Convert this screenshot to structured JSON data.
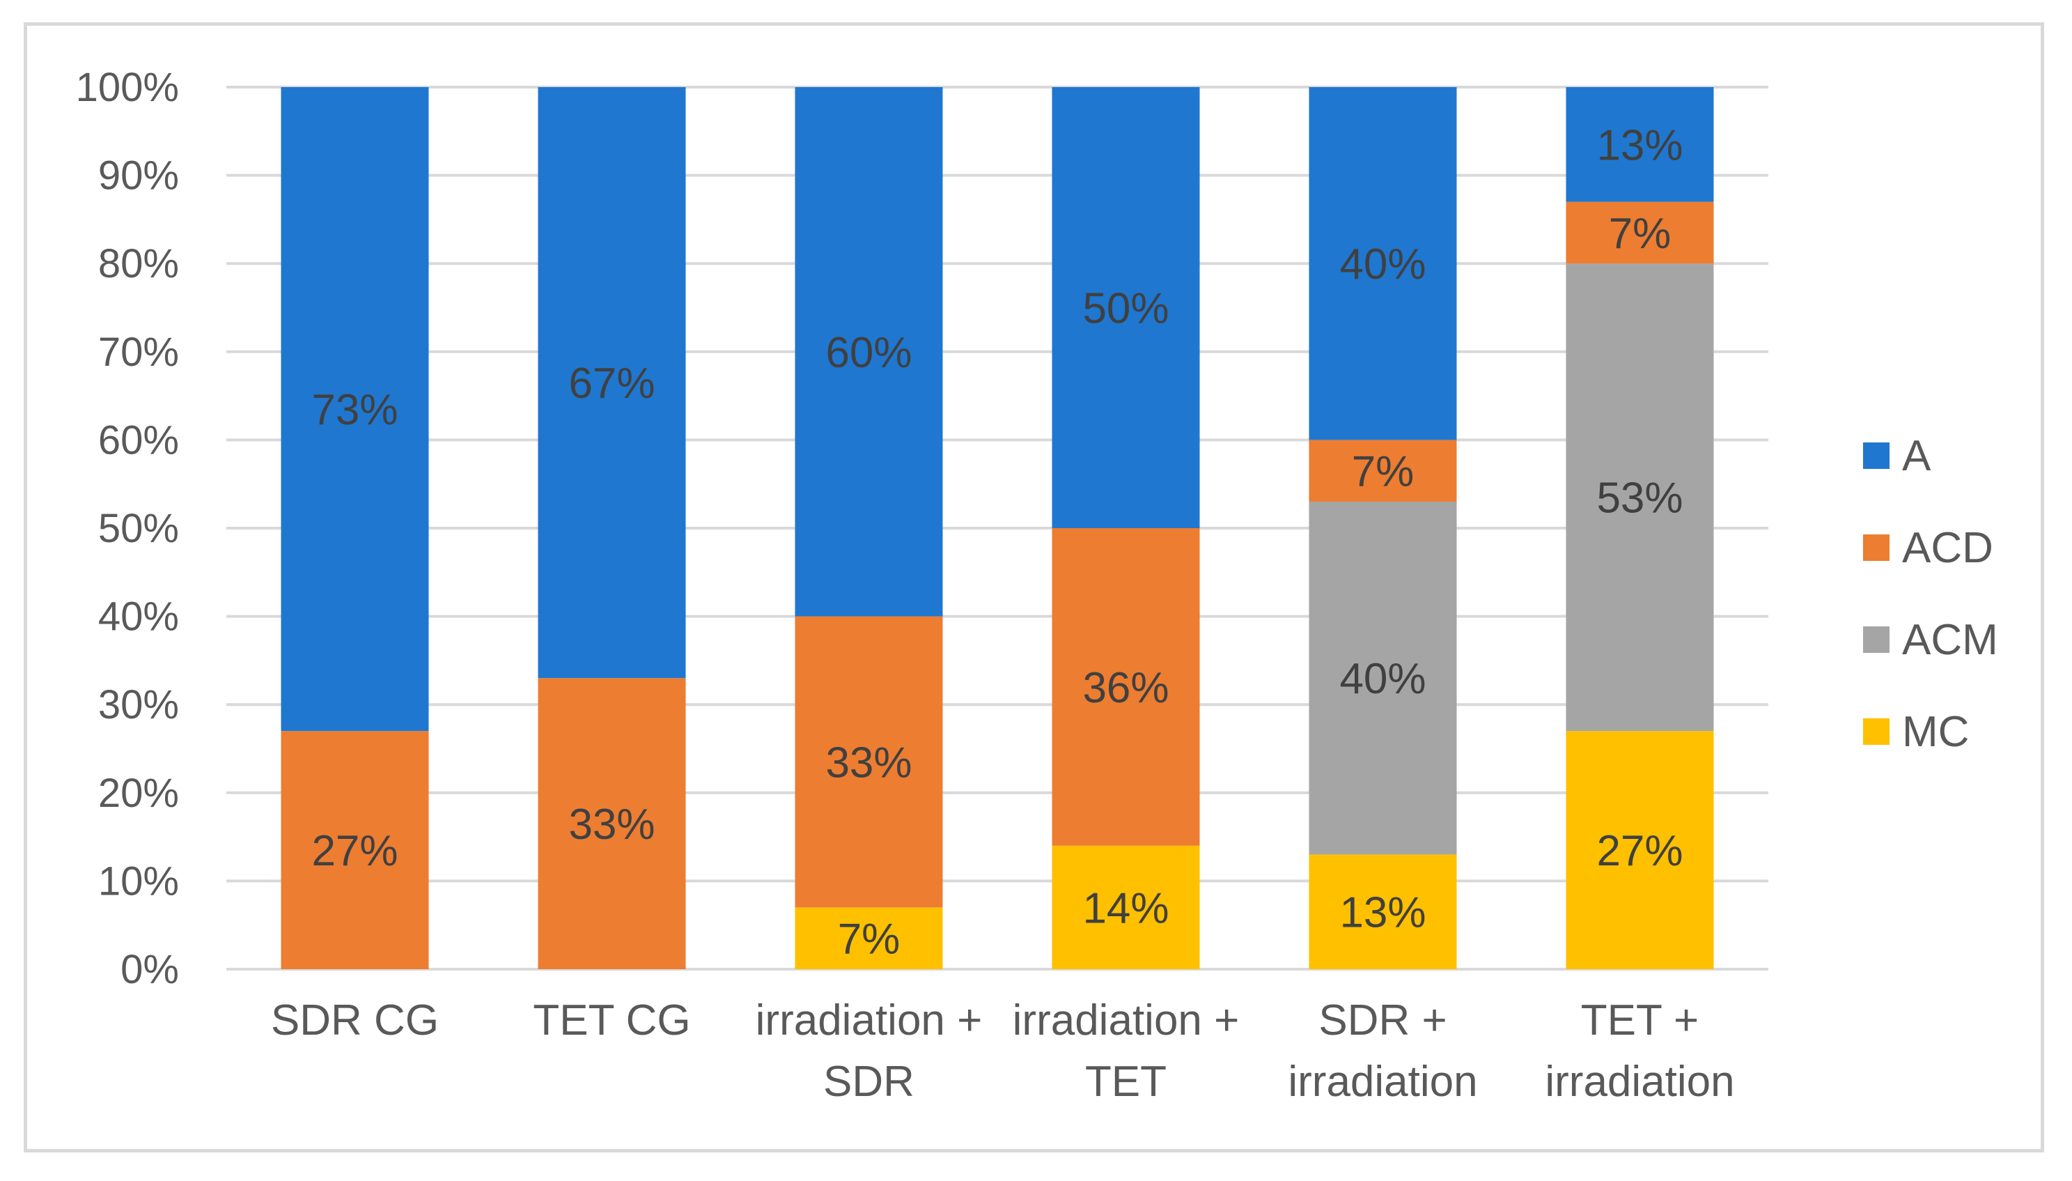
{
  "chart_data": {
    "type": "bar",
    "stacked": true,
    "categories": [
      [
        "SDR CG"
      ],
      [
        "TET CG"
      ],
      [
        "irradiation +",
        "SDR"
      ],
      [
        "irradiation +",
        "TET"
      ],
      [
        "SDR +",
        "irradiation"
      ],
      [
        "TET +",
        "irradiation"
      ]
    ],
    "series": [
      {
        "name": "MC",
        "color": "#ffc000",
        "values": [
          0,
          0,
          7,
          14,
          13,
          27
        ],
        "labels": [
          "",
          "",
          "7%",
          "14%",
          "13%",
          "27%"
        ]
      },
      {
        "name": "ACM",
        "color": "#a5a5a5",
        "values": [
          0,
          0,
          0,
          0,
          40,
          53
        ],
        "labels": [
          "",
          "",
          "",
          "",
          "40%",
          "53%"
        ]
      },
      {
        "name": "ACD",
        "color": "#ed7d31",
        "values": [
          27,
          33,
          33,
          36,
          7,
          7
        ],
        "labels": [
          "27%",
          "33%",
          "33%",
          "36%",
          "7%",
          "7%"
        ]
      },
      {
        "name": "A",
        "color": "#1f77d0",
        "values": [
          73,
          67,
          60,
          50,
          40,
          13
        ],
        "labels": [
          "73%",
          "67%",
          "60%",
          "50%",
          "40%",
          "13%"
        ]
      }
    ],
    "legend_order": [
      "A",
      "ACD",
      "ACM",
      "MC"
    ],
    "legend_position": "right",
    "ylim": [
      0,
      100
    ],
    "yticks": [
      "0%",
      "10%",
      "20%",
      "30%",
      "40%",
      "50%",
      "60%",
      "70%",
      "80%",
      "90%",
      "100%"
    ],
    "grid": true,
    "title": "",
    "xlabel": "",
    "ylabel": ""
  }
}
